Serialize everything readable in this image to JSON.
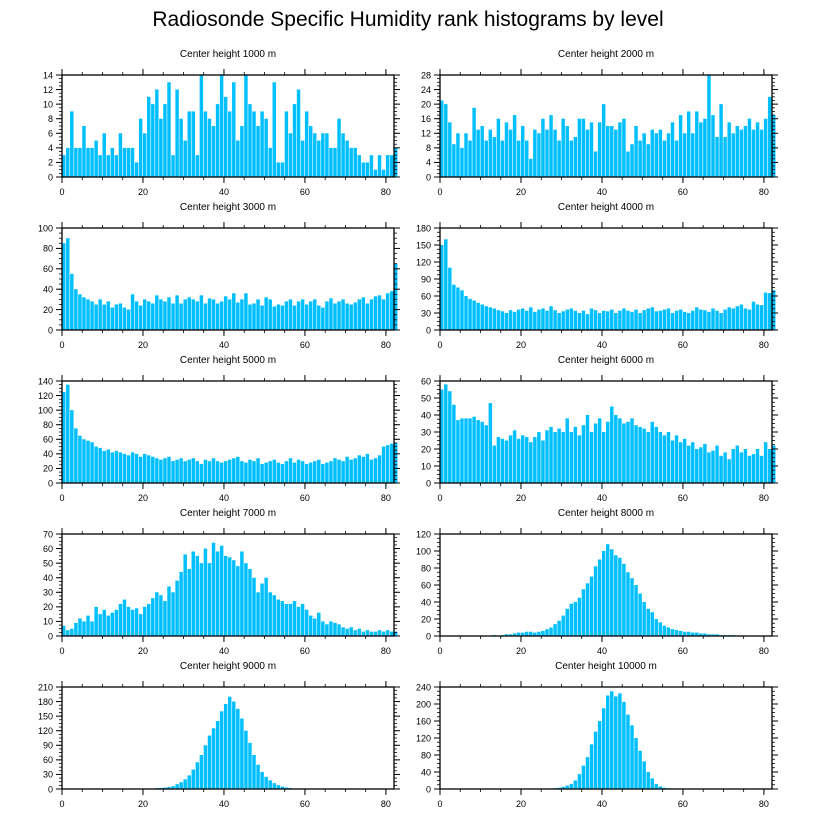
{
  "figure": {
    "title": "Radiosonde Specific Humidity rank histograms by level"
  },
  "colors": {
    "bar": "#00bfff",
    "axis": "#000000"
  },
  "chart_data": [
    {
      "type": "bar",
      "title": "Center height 1000 m",
      "xlim": [
        0,
        82
      ],
      "xticks": [
        0,
        20,
        40,
        60,
        80
      ],
      "ylim": [
        0,
        14
      ],
      "yticks": [
        0,
        2,
        4,
        6,
        8,
        10,
        12,
        14
      ],
      "values": [
        3,
        4,
        9,
        4,
        4,
        7,
        4,
        4,
        5,
        3,
        6,
        3,
        4,
        3,
        6,
        4,
        4,
        4,
        2,
        8,
        6,
        11,
        10,
        12,
        8,
        10,
        13,
        3,
        12,
        8,
        5,
        9,
        9,
        3,
        14,
        9,
        8,
        7,
        10,
        14,
        11,
        9,
        13,
        5,
        7,
        14,
        10,
        9,
        7,
        9,
        8,
        4,
        13,
        2,
        2,
        9,
        6,
        10,
        12,
        5,
        9,
        7,
        6,
        5,
        6,
        6,
        4,
        4,
        8,
        6,
        5,
        4,
        4,
        3,
        2,
        2,
        3,
        1,
        3,
        1,
        3,
        3,
        4
      ]
    },
    {
      "type": "bar",
      "title": "Center height 2000 m",
      "xlim": [
        0,
        82
      ],
      "xticks": [
        0,
        20,
        40,
        60,
        80
      ],
      "ylim": [
        0,
        28
      ],
      "yticks": [
        0,
        4,
        8,
        12,
        16,
        20,
        24,
        28
      ],
      "values": [
        21,
        20,
        15,
        9,
        12,
        8,
        12,
        10,
        19,
        13,
        14,
        10,
        13,
        11,
        16,
        10,
        15,
        13,
        17,
        10,
        14,
        10,
        5,
        13,
        12,
        16,
        13,
        17,
        13,
        10,
        16,
        14,
        10,
        11,
        16,
        16,
        13,
        15,
        7,
        15,
        20,
        14,
        14,
        13,
        15,
        16,
        7,
        9,
        14,
        10,
        12,
        9,
        13,
        12,
        13,
        10,
        12,
        15,
        10,
        17,
        12,
        18,
        12,
        18,
        15,
        16,
        28,
        17,
        11,
        20,
        11,
        15,
        12,
        14,
        13,
        14,
        16,
        13,
        15,
        13,
        16,
        22,
        17
      ]
    },
    {
      "type": "bar",
      "title": "Center height 3000 m",
      "xlim": [
        0,
        82
      ],
      "xticks": [
        0,
        20,
        40,
        60,
        80
      ],
      "ylim": [
        0,
        100
      ],
      "yticks": [
        0,
        20,
        40,
        60,
        80,
        100
      ],
      "values": [
        85,
        90,
        55,
        40,
        35,
        32,
        30,
        28,
        25,
        30,
        25,
        28,
        22,
        25,
        26,
        22,
        20,
        35,
        28,
        24,
        30,
        28,
        26,
        34,
        30,
        28,
        32,
        26,
        34,
        26,
        30,
        32,
        30,
        28,
        34,
        26,
        31,
        30,
        26,
        28,
        33,
        30,
        36,
        27,
        30,
        36,
        25,
        26,
        30,
        24,
        32,
        30,
        23,
        25,
        24,
        28,
        30,
        24,
        28,
        30,
        25,
        28,
        30,
        24,
        22,
        28,
        31,
        26,
        28,
        30,
        26,
        25,
        27,
        30,
        32,
        26,
        30,
        33,
        34,
        30,
        36,
        38,
        65
      ]
    },
    {
      "type": "bar",
      "title": "Center height 4000 m",
      "xlim": [
        0,
        82
      ],
      "xticks": [
        0,
        20,
        40,
        60,
        80
      ],
      "ylim": [
        0,
        180
      ],
      "yticks": [
        0,
        30,
        60,
        90,
        120,
        150,
        180
      ],
      "values": [
        150,
        160,
        110,
        80,
        75,
        70,
        60,
        55,
        52,
        48,
        45,
        42,
        40,
        38,
        35,
        33,
        30,
        35,
        32,
        36,
        38,
        34,
        40,
        32,
        36,
        38,
        34,
        42,
        35,
        30,
        33,
        36,
        38,
        34,
        30,
        34,
        28,
        38,
        35,
        30,
        34,
        33,
        36,
        30,
        34,
        38,
        34,
        32,
        36,
        30,
        35,
        38,
        40,
        33,
        34,
        36,
        38,
        30,
        34,
        36,
        32,
        30,
        34,
        40,
        36,
        35,
        32,
        38,
        34,
        30,
        36,
        40,
        38,
        42,
        45,
        38,
        36,
        50,
        45,
        44,
        66,
        65,
        70
      ]
    },
    {
      "type": "bar",
      "title": "Center height 5000 m",
      "xlim": [
        0,
        82
      ],
      "xticks": [
        0,
        20,
        40,
        60,
        80
      ],
      "ylim": [
        0,
        140
      ],
      "yticks": [
        0,
        20,
        40,
        60,
        80,
        100,
        120,
        140
      ],
      "values": [
        125,
        135,
        100,
        75,
        65,
        60,
        58,
        56,
        50,
        48,
        44,
        46,
        42,
        44,
        42,
        40,
        38,
        42,
        40,
        36,
        40,
        38,
        36,
        34,
        32,
        34,
        36,
        30,
        32,
        34,
        30,
        32,
        34,
        30,
        26,
        32,
        30,
        34,
        30,
        28,
        30,
        32,
        34,
        36,
        30,
        28,
        32,
        30,
        34,
        26,
        28,
        30,
        32,
        28,
        26,
        30,
        34,
        28,
        32,
        30,
        26,
        28,
        30,
        32,
        26,
        28,
        30,
        34,
        32,
        30,
        36,
        32,
        34,
        38,
        36,
        40,
        32,
        34,
        38,
        50,
        52,
        54,
        55
      ]
    },
    {
      "type": "bar",
      "title": "Center height 6000 m",
      "xlim": [
        0,
        82
      ],
      "xticks": [
        0,
        20,
        40,
        60,
        80
      ],
      "ylim": [
        0,
        60
      ],
      "yticks": [
        0,
        10,
        20,
        30,
        40,
        50,
        60
      ],
      "values": [
        55,
        58,
        54,
        46,
        37,
        38,
        38,
        38,
        39,
        37,
        36,
        34,
        47,
        22,
        27,
        26,
        25,
        28,
        31,
        26,
        28,
        27,
        24,
        27,
        30,
        25,
        31,
        33,
        30,
        32,
        30,
        38,
        30,
        33,
        28,
        34,
        40,
        30,
        35,
        38,
        30,
        36,
        45,
        40,
        38,
        35,
        36,
        38,
        34,
        33,
        32,
        30,
        36,
        33,
        30,
        28,
        30,
        25,
        28,
        24,
        26,
        22,
        24,
        20,
        21,
        23,
        18,
        19,
        22,
        16,
        18,
        14,
        20,
        22,
        18,
        20,
        16,
        17,
        20,
        16,
        24,
        20,
        22
      ]
    },
    {
      "type": "bar",
      "title": "Center height 7000 m",
      "xlim": [
        0,
        82
      ],
      "xticks": [
        0,
        20,
        40,
        60,
        80
      ],
      "ylim": [
        0,
        70
      ],
      "yticks": [
        0,
        10,
        20,
        30,
        40,
        50,
        60,
        70
      ],
      "values": [
        7,
        4,
        5,
        9,
        12,
        10,
        14,
        10,
        20,
        15,
        18,
        14,
        16,
        18,
        22,
        25,
        20,
        18,
        19,
        15,
        20,
        22,
        26,
        30,
        28,
        24,
        34,
        30,
        38,
        44,
        56,
        46,
        58,
        55,
        50,
        60,
        50,
        64,
        58,
        62,
        55,
        54,
        52,
        48,
        58,
        50,
        46,
        40,
        30,
        36,
        40,
        30,
        28,
        25,
        24,
        22,
        22,
        24,
        20,
        22,
        18,
        14,
        12,
        16,
        10,
        8,
        10,
        9,
        8,
        6,
        5,
        6,
        4,
        5,
        3,
        4,
        3,
        3,
        4,
        3,
        4,
        3,
        3
      ]
    },
    {
      "type": "bar",
      "title": "Center height 8000 m",
      "xlim": [
        0,
        82
      ],
      "xticks": [
        0,
        20,
        40,
        60,
        80
      ],
      "ylim": [
        0,
        120
      ],
      "yticks": [
        0,
        20,
        40,
        60,
        80,
        100,
        120
      ],
      "values": [
        0,
        0,
        0,
        0,
        0,
        0,
        0,
        0,
        0,
        0,
        0,
        0,
        0,
        1,
        0,
        1,
        2,
        2,
        3,
        4,
        4,
        5,
        5,
        4,
        5,
        6,
        8,
        10,
        14,
        18,
        24,
        32,
        38,
        40,
        45,
        55,
        62,
        70,
        82,
        90,
        100,
        108,
        102,
        95,
        92,
        85,
        75,
        68,
        60,
        50,
        40,
        32,
        28,
        20,
        16,
        12,
        10,
        8,
        7,
        6,
        5,
        5,
        4,
        4,
        3,
        3,
        2,
        2,
        2,
        1,
        1,
        1,
        1,
        0,
        0,
        0,
        0,
        0,
        0,
        0,
        0,
        0,
        0
      ]
    },
    {
      "type": "bar",
      "title": "Center height 9000 m",
      "xlim": [
        0,
        82
      ],
      "xticks": [
        0,
        20,
        40,
        60,
        80
      ],
      "ylim": [
        0,
        210
      ],
      "yticks": [
        0,
        30,
        60,
        90,
        120,
        150,
        180,
        210
      ],
      "values": [
        0,
        0,
        0,
        0,
        0,
        0,
        0,
        0,
        0,
        0,
        0,
        0,
        0,
        0,
        0,
        0,
        0,
        0,
        0,
        0,
        1,
        1,
        1,
        2,
        2,
        3,
        4,
        6,
        10,
        14,
        20,
        28,
        40,
        55,
        70,
        90,
        110,
        125,
        140,
        160,
        175,
        190,
        180,
        165,
        145,
        120,
        95,
        70,
        50,
        35,
        25,
        18,
        12,
        8,
        5,
        3,
        2,
        1,
        1,
        1,
        0,
        0,
        0,
        0,
        0,
        0,
        0,
        0,
        0,
        0,
        0,
        0,
        0,
        0,
        0,
        0,
        0,
        0,
        0,
        0,
        0,
        0,
        0
      ]
    },
    {
      "type": "bar",
      "title": "Center height 10000 m",
      "xlim": [
        0,
        82
      ],
      "xticks": [
        0,
        20,
        40,
        60,
        80
      ],
      "ylim": [
        0,
        240
      ],
      "yticks": [
        0,
        40,
        80,
        120,
        160,
        200,
        240
      ],
      "values": [
        0,
        0,
        0,
        0,
        0,
        0,
        0,
        0,
        0,
        0,
        0,
        0,
        0,
        0,
        0,
        0,
        0,
        0,
        0,
        0,
        0,
        0,
        0,
        0,
        0,
        0,
        1,
        1,
        2,
        3,
        5,
        8,
        12,
        20,
        35,
        55,
        75,
        105,
        135,
        160,
        190,
        220,
        230,
        218,
        225,
        205,
        175,
        150,
        120,
        90,
        65,
        40,
        25,
        12,
        6,
        3,
        2,
        1,
        1,
        0,
        0,
        0,
        0,
        0,
        0,
        0,
        0,
        0,
        0,
        0,
        0,
        0,
        0,
        0,
        0,
        0,
        0,
        0,
        0,
        0,
        0,
        0,
        0
      ]
    }
  ]
}
